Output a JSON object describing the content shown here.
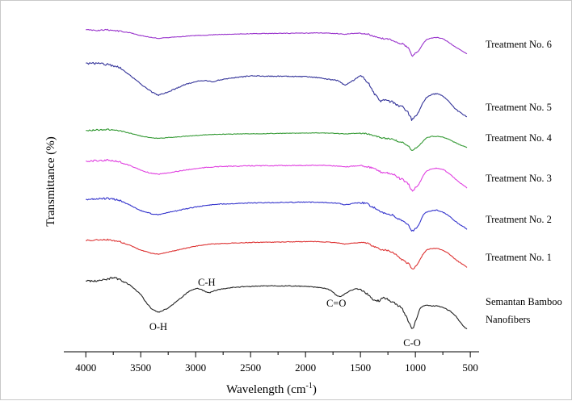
{
  "chart_data": {
    "type": "line",
    "title": "",
    "xlabel": "Wavelength (cm",
    "xlabel_superscript": "-1",
    "xlabel_suffix": ")",
    "ylabel": "Transmittance (%)",
    "xlim": [
      4200,
      420
    ],
    "x_reversed": true,
    "x_ticks": [
      4000,
      3500,
      3000,
      2500,
      2000,
      1500,
      1000,
      500
    ],
    "y_ticks_shown": false,
    "grid": false,
    "legend": "labels placed to the right of each spectrum",
    "peak_annotations": [
      {
        "label": "O-H",
        "x": 3340
      },
      {
        "label": "C-H",
        "x": 2900
      },
      {
        "label": "C=O",
        "x": 1720
      },
      {
        "label": "C-O",
        "x": 1030
      }
    ],
    "series": [
      {
        "name": "Treatment No. 6",
        "color": "#9933cc",
        "noise": 0.35,
        "x": [
          4000,
          3900,
          3800,
          3700,
          3600,
          3500,
          3400,
          3340,
          3200,
          3000,
          2900,
          2800,
          2500,
          2000,
          1900,
          1800,
          1700,
          1640,
          1580,
          1500,
          1430,
          1370,
          1320,
          1260,
          1200,
          1160,
          1110,
          1060,
          1030,
          1000,
          970,
          930,
          900,
          850,
          800,
          750,
          700,
          650,
          600,
          550,
          530
        ],
        "y": [
          36.0,
          36.8,
          36.0,
          37.5,
          39.5,
          43.0,
          45.5,
          46.5,
          45.0,
          43.0,
          42.5,
          41.8,
          40.8,
          40.0,
          39.8,
          40.0,
          40.8,
          41.5,
          40.5,
          40.0,
          41.5,
          44.5,
          46.5,
          47.0,
          49.0,
          52.0,
          53.5,
          59.0,
          69.0,
          65.0,
          62.0,
          53.0,
          48.0,
          46.0,
          45.5,
          47.0,
          51.0,
          56.0,
          60.0,
          64.0,
          66.0
        ]
      },
      {
        "name": "Treatment No. 5",
        "color": "#333399",
        "noise": 0.6,
        "x": [
          4000,
          3900,
          3800,
          3700,
          3600,
          3500,
          3400,
          3340,
          3250,
          3100,
          3000,
          2900,
          2850,
          2750,
          2500,
          2000,
          1900,
          1800,
          1700,
          1640,
          1580,
          1500,
          1430,
          1370,
          1320,
          1260,
          1200,
          1160,
          1110,
          1060,
          1030,
          1000,
          970,
          930,
          900,
          850,
          800,
          750,
          700,
          650,
          600,
          550,
          530
        ],
        "y": [
          77.5,
          77.5,
          79.0,
          82.0,
          92.0,
          103.0,
          113.0,
          117.0,
          113.0,
          104.0,
          100.0,
          99.0,
          100.5,
          97.0,
          93.0,
          94.0,
          95.0,
          97.0,
          99.0,
          105.0,
          100.0,
          93.0,
          101.0,
          116.0,
          124.0,
          123.0,
          126.0,
          130.0,
          132.0,
          140.0,
          148.0,
          144.0,
          138.0,
          126.0,
          120.0,
          116.0,
          115.0,
          118.0,
          124.0,
          132.0,
          138.0,
          142.0,
          144.0
        ]
      },
      {
        "name": "Treatment No. 4",
        "color": "#339933",
        "noise": 0.35,
        "x": [
          4000,
          3900,
          3800,
          3700,
          3600,
          3500,
          3400,
          3340,
          3200,
          3000,
          2900,
          2800,
          2500,
          2000,
          1900,
          1800,
          1700,
          1640,
          1580,
          1500,
          1430,
          1370,
          1320,
          1260,
          1200,
          1160,
          1110,
          1060,
          1030,
          1000,
          970,
          930,
          900,
          850,
          800,
          750,
          700,
          650,
          600,
          550,
          530
        ],
        "y": [
          161.0,
          160.0,
          159.5,
          161.0,
          164.0,
          167.5,
          170.0,
          170.5,
          169.0,
          167.0,
          166.0,
          165.5,
          164.8,
          164.0,
          163.8,
          164.0,
          164.5,
          165.0,
          164.5,
          164.0,
          165.0,
          167.0,
          169.5,
          170.5,
          171.5,
          174.0,
          176.0,
          180.0,
          186.0,
          183.0,
          180.0,
          174.0,
          170.0,
          168.0,
          168.0,
          169.0,
          171.5,
          175.0,
          178.0,
          181.0,
          182.0
        ]
      },
      {
        "name": "Treatment No. 3",
        "color": "#e040e0",
        "noise": 0.5,
        "x": [
          4000,
          3900,
          3800,
          3700,
          3600,
          3500,
          3400,
          3340,
          3200,
          3000,
          2900,
          2800,
          2500,
          2000,
          1900,
          1800,
          1700,
          1640,
          1580,
          1500,
          1430,
          1370,
          1320,
          1260,
          1200,
          1160,
          1110,
          1060,
          1030,
          1000,
          970,
          930,
          900,
          850,
          800,
          750,
          700,
          650,
          600,
          550,
          530
        ],
        "y": [
          199.0,
          198.0,
          197.5,
          199.5,
          204.0,
          210.0,
          214.0,
          215.0,
          212.0,
          208.0,
          206.5,
          205.5,
          204.5,
          204.0,
          203.8,
          204.0,
          205.0,
          206.0,
          205.0,
          204.0,
          205.5,
          208.5,
          212.0,
          213.0,
          215.0,
          219.0,
          222.0,
          228.0,
          236.0,
          232.0,
          228.0,
          217.0,
          211.0,
          208.0,
          207.5,
          209.0,
          213.0,
          219.0,
          225.0,
          230.0,
          232.0
        ]
      },
      {
        "name": "Treatment No. 2",
        "color": "#3333cc",
        "noise": 0.5,
        "x": [
          4000,
          3900,
          3800,
          3700,
          3600,
          3500,
          3400,
          3340,
          3200,
          3000,
          2900,
          2800,
          2500,
          2000,
          1900,
          1800,
          1700,
          1640,
          1580,
          1500,
          1430,
          1370,
          1320,
          1260,
          1200,
          1160,
          1110,
          1060,
          1030,
          1000,
          970,
          930,
          900,
          850,
          800,
          750,
          700,
          650,
          600,
          550,
          530
        ],
        "y": [
          246.0,
          245.5,
          245.0,
          247.0,
          253.0,
          260.0,
          264.0,
          265.0,
          261.0,
          255.5,
          253.5,
          252.0,
          250.5,
          249.5,
          249.5,
          250.0,
          251.0,
          253.0,
          251.5,
          250.0,
          252.0,
          257.0,
          262.0,
          264.0,
          266.0,
          270.0,
          274.0,
          278.0,
          286.0,
          283.0,
          278.0,
          266.0,
          262.0,
          260.0,
          259.5,
          262.0,
          266.0,
          272.0,
          277.0,
          281.0,
          283.0
        ]
      },
      {
        "name": "Treatment No. 1",
        "color": "#dd3333",
        "noise": 0.4,
        "x": [
          4000,
          3900,
          3800,
          3700,
          3600,
          3500,
          3400,
          3340,
          3200,
          3000,
          2900,
          2800,
          2500,
          2000,
          1900,
          1800,
          1700,
          1640,
          1580,
          1500,
          1430,
          1370,
          1320,
          1260,
          1200,
          1160,
          1110,
          1060,
          1030,
          1000,
          970,
          930,
          900,
          850,
          800,
          750,
          700,
          650,
          600,
          550,
          530
        ],
        "y": [
          297.0,
          296.5,
          296.0,
          298.0,
          303.0,
          309.0,
          313.0,
          314.0,
          310.0,
          304.0,
          302.0,
          301.0,
          299.5,
          298.5,
          298.5,
          299.0,
          300.0,
          301.5,
          300.5,
          299.5,
          301.0,
          305.0,
          308.0,
          309.0,
          312.0,
          317.0,
          322.0,
          326.0,
          333.0,
          330.0,
          324.0,
          314.0,
          309.0,
          307.0,
          307.0,
          309.0,
          313.0,
          319.0,
          324.0,
          328.0,
          330.0
        ]
      },
      {
        "name": "Semantan Bamboo Nanofibers",
        "name_lines": [
          "Semantan Bamboo",
          "Nanofibers"
        ],
        "color": "#222222",
        "noise": 0.5,
        "x": [
          4000,
          3900,
          3800,
          3750,
          3700,
          3600,
          3500,
          3450,
          3400,
          3340,
          3250,
          3150,
          3050,
          2980,
          2920,
          2880,
          2800,
          2650,
          2500,
          2300,
          2100,
          2000,
          1900,
          1800,
          1760,
          1720,
          1680,
          1640,
          1600,
          1550,
          1510,
          1470,
          1430,
          1400,
          1370,
          1330,
          1300,
          1260,
          1230,
          1200,
          1160,
          1130,
          1110,
          1080,
          1060,
          1040,
          1030,
          1010,
          1000,
          980,
          960,
          930,
          900,
          870,
          850,
          820,
          800,
          760,
          720,
          680,
          650,
          620,
          600,
          570,
          550,
          530
        ],
        "y": [
          347.0,
          347.5,
          345.0,
          343.0,
          345.0,
          352.0,
          364.0,
          374.0,
          382.0,
          386.0,
          381.0,
          370.0,
          359.0,
          356.0,
          360.0,
          362.0,
          358.0,
          355.0,
          354.0,
          353.0,
          353.5,
          354.0,
          355.0,
          357.0,
          360.0,
          365.0,
          367.0,
          363.0,
          360.0,
          357.0,
          357.5,
          360.0,
          364.0,
          369.0,
          371.0,
          372.0,
          368.0,
          369.0,
          372.0,
          373.0,
          378.0,
          380.0,
          384.0,
          392.0,
          398.0,
          404.0,
          406.0,
          403.0,
          398.0,
          390.0,
          382.0,
          378.0,
          377.0,
          377.5,
          378.5,
          378.0,
          378.0,
          379.5,
          382.0,
          385.0,
          388.0,
          393.0,
          397.0,
          402.0,
          405.0,
          407.0
        ]
      }
    ]
  }
}
